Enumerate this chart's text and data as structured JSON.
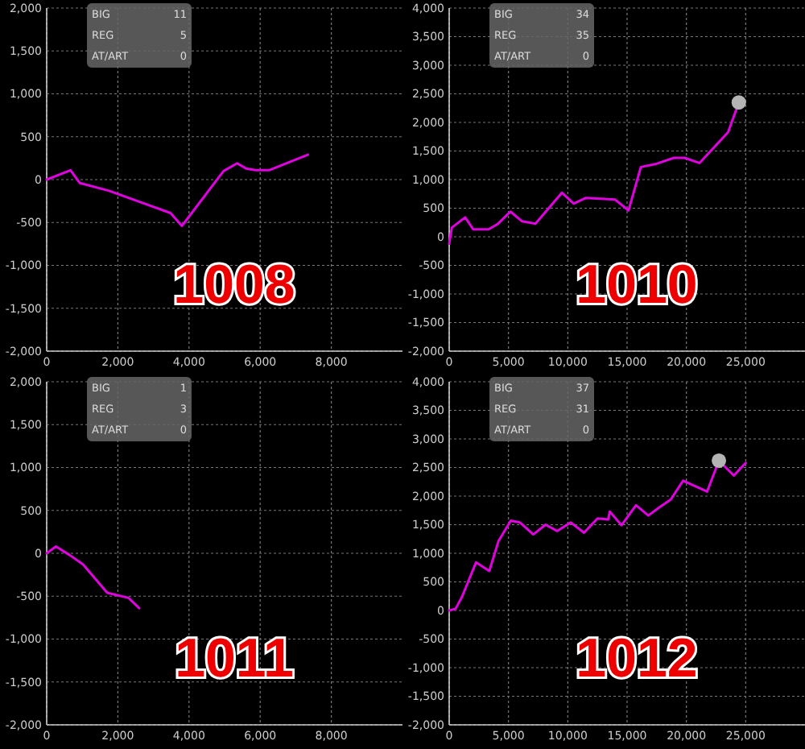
{
  "chart_data": [
    {
      "type": "line",
      "title": "1008",
      "annotations": [
        "BIG",
        "11",
        "REG",
        "5",
        "AT/ART",
        "0"
      ],
      "xlim": [
        0,
        10000
      ],
      "xticks": [
        {
          "value": 0,
          "label": "0"
        },
        {
          "value": 2000,
          "label": "2,000"
        },
        {
          "value": 4000,
          "label": "4,000"
        },
        {
          "value": 6000,
          "label": "6,000"
        },
        {
          "value": 8000,
          "label": "8,000"
        }
      ],
      "ylim": [
        -2000,
        2000
      ],
      "yticks": [
        {
          "value": -2000,
          "label": "-2,000"
        },
        {
          "value": -1500,
          "label": "-1,500"
        },
        {
          "value": -1000,
          "label": "-1,000"
        },
        {
          "value": -500,
          "label": "-500"
        },
        {
          "value": 0,
          "label": "0"
        },
        {
          "value": 500,
          "label": "500"
        },
        {
          "value": 1000,
          "label": "1,000"
        },
        {
          "value": 1500,
          "label": "1,500"
        },
        {
          "value": 2000,
          "label": "2,000"
        }
      ],
      "grid": true,
      "line_style": "solid",
      "marker": "none",
      "series": [
        {
          "type": "line",
          "color": "#e000e0",
          "x": [
            0,
            670,
            930,
            1750,
            3480,
            3800,
            4970,
            5350,
            5600,
            5870,
            6250,
            7340
          ],
          "values": [
            0,
            110,
            -40,
            -130,
            -390,
            -540,
            100,
            190,
            130,
            110,
            110,
            290
          ]
        }
      ]
    },
    {
      "type": "line",
      "title": "1010",
      "annotations": [
        "BIG",
        "34",
        "REG",
        "35",
        "AT/ART",
        "0"
      ],
      "xlim": [
        0,
        30000
      ],
      "xticks": [
        {
          "value": 0,
          "label": "0"
        },
        {
          "value": 5000,
          "label": "5,000"
        },
        {
          "value": 10000,
          "label": "10,000"
        },
        {
          "value": 15000,
          "label": "15,000"
        },
        {
          "value": 20000,
          "label": "20,000"
        },
        {
          "value": 25000,
          "label": "25,000"
        }
      ],
      "ylim": [
        -2000,
        4000
      ],
      "yticks": [
        {
          "value": -2000,
          "label": "-2,000"
        },
        {
          "value": -1500,
          "label": "-1,500"
        },
        {
          "value": -1000,
          "label": "-1,000"
        },
        {
          "value": -500,
          "label": "-500"
        },
        {
          "value": 0,
          "label": "0"
        },
        {
          "value": 500,
          "label": "500"
        },
        {
          "value": 1000,
          "label": "1,000"
        },
        {
          "value": 1500,
          "label": "1,500"
        },
        {
          "value": 2000,
          "label": "2,000"
        },
        {
          "value": 2500,
          "label": "2,500"
        },
        {
          "value": 3000,
          "label": "3,000"
        },
        {
          "value": 3500,
          "label": "3,500"
        },
        {
          "value": 4000,
          "label": "4,000"
        }
      ],
      "grid": true,
      "line_style": "solid",
      "marker": "none",
      "series": [
        {
          "type": "line",
          "color": "#e000e0",
          "x": [
            0,
            220,
            1350,
            2020,
            3320,
            4130,
            5160,
            6150,
            7270,
            9510,
            10500,
            11530,
            13990,
            15120,
            16160,
            17370,
            18940,
            19840,
            21100,
            23520,
            24420
          ],
          "values": [
            -120,
            160,
            340,
            130,
            130,
            230,
            440,
            270,
            230,
            770,
            580,
            680,
            650,
            460,
            1220,
            1270,
            1380,
            1380,
            1290,
            1830,
            2350
          ]
        },
        {
          "type": "scatter",
          "marker": "circle",
          "color": "#b4b4b4",
          "x": [
            24420
          ],
          "values": [
            2350
          ]
        }
      ]
    },
    {
      "type": "line",
      "title": "1011",
      "annotations": [
        "BIG",
        "1",
        "REG",
        "3",
        "AT/ART",
        "0"
      ],
      "xlim": [
        0,
        10000
      ],
      "xticks": [
        {
          "value": 0,
          "label": "0"
        },
        {
          "value": 2000,
          "label": "2,000"
        },
        {
          "value": 4000,
          "label": "4,000"
        },
        {
          "value": 6000,
          "label": "6,000"
        },
        {
          "value": 8000,
          "label": "8,000"
        }
      ],
      "ylim": [
        -2000,
        2000
      ],
      "yticks": [
        {
          "value": -2000,
          "label": "-2,000"
        },
        {
          "value": -1500,
          "label": "-1,500"
        },
        {
          "value": -1000,
          "label": "-1,000"
        },
        {
          "value": -500,
          "label": "-500"
        },
        {
          "value": 0,
          "label": "0"
        },
        {
          "value": 500,
          "label": "500"
        },
        {
          "value": 1000,
          "label": "1,000"
        },
        {
          "value": 1500,
          "label": "1,500"
        },
        {
          "value": 2000,
          "label": "2,000"
        }
      ],
      "grid": true,
      "line_style": "solid",
      "marker": "none",
      "series": [
        {
          "type": "line",
          "color": "#e000e0",
          "x": [
            0,
            260,
            640,
            1020,
            1700,
            2300,
            2600
          ],
          "values": [
            0,
            80,
            -20,
            -130,
            -460,
            -520,
            -640
          ]
        }
      ]
    },
    {
      "type": "line",
      "title": "1012",
      "annotations": [
        "BIG",
        "37",
        "REG",
        "31",
        "AT/ART",
        "0"
      ],
      "xlim": [
        0,
        30000
      ],
      "xticks": [
        {
          "value": 0,
          "label": "0"
        },
        {
          "value": 5000,
          "label": "5,000"
        },
        {
          "value": 10000,
          "label": "10,000"
        },
        {
          "value": 15000,
          "label": "15,000"
        },
        {
          "value": 20000,
          "label": "20,000"
        },
        {
          "value": 25000,
          "label": "25,000"
        }
      ],
      "ylim": [
        -2000,
        4000
      ],
      "yticks": [
        {
          "value": -2000,
          "label": "-2,000"
        },
        {
          "value": -1500,
          "label": "-1,500"
        },
        {
          "value": -1000,
          "label": "-1,000"
        },
        {
          "value": -500,
          "label": "-500"
        },
        {
          "value": 0,
          "label": "0"
        },
        {
          "value": 500,
          "label": "500"
        },
        {
          "value": 1000,
          "label": "1,000"
        },
        {
          "value": 1500,
          "label": "1,500"
        },
        {
          "value": 2000,
          "label": "2,000"
        },
        {
          "value": 2500,
          "label": "2,500"
        },
        {
          "value": 3000,
          "label": "3,000"
        },
        {
          "value": 3500,
          "label": "3,500"
        },
        {
          "value": 4000,
          "label": "4,000"
        }
      ],
      "grid": true,
      "line_style": "solid",
      "marker": "none",
      "series": [
        {
          "type": "line",
          "color": "#e000e0",
          "x": [
            0,
            540,
            1080,
            2260,
            3380,
            4150,
            5190,
            5960,
            7090,
            8120,
            9110,
            10240,
            11370,
            12500,
            13400,
            13540,
            14530,
            15750,
            16790,
            17690,
            18680,
            19720,
            21750,
            22740,
            24000,
            25000
          ],
          "values": [
            0,
            30,
            240,
            840,
            690,
            1210,
            1570,
            1540,
            1330,
            1500,
            1390,
            1540,
            1360,
            1610,
            1590,
            1730,
            1490,
            1840,
            1660,
            1800,
            1940,
            2270,
            2080,
            2620,
            2360,
            2580
          ]
        },
        {
          "type": "scatter",
          "marker": "circle",
          "color": "#b4b4b4",
          "x": [
            22740
          ],
          "values": [
            2620
          ]
        }
      ]
    }
  ]
}
